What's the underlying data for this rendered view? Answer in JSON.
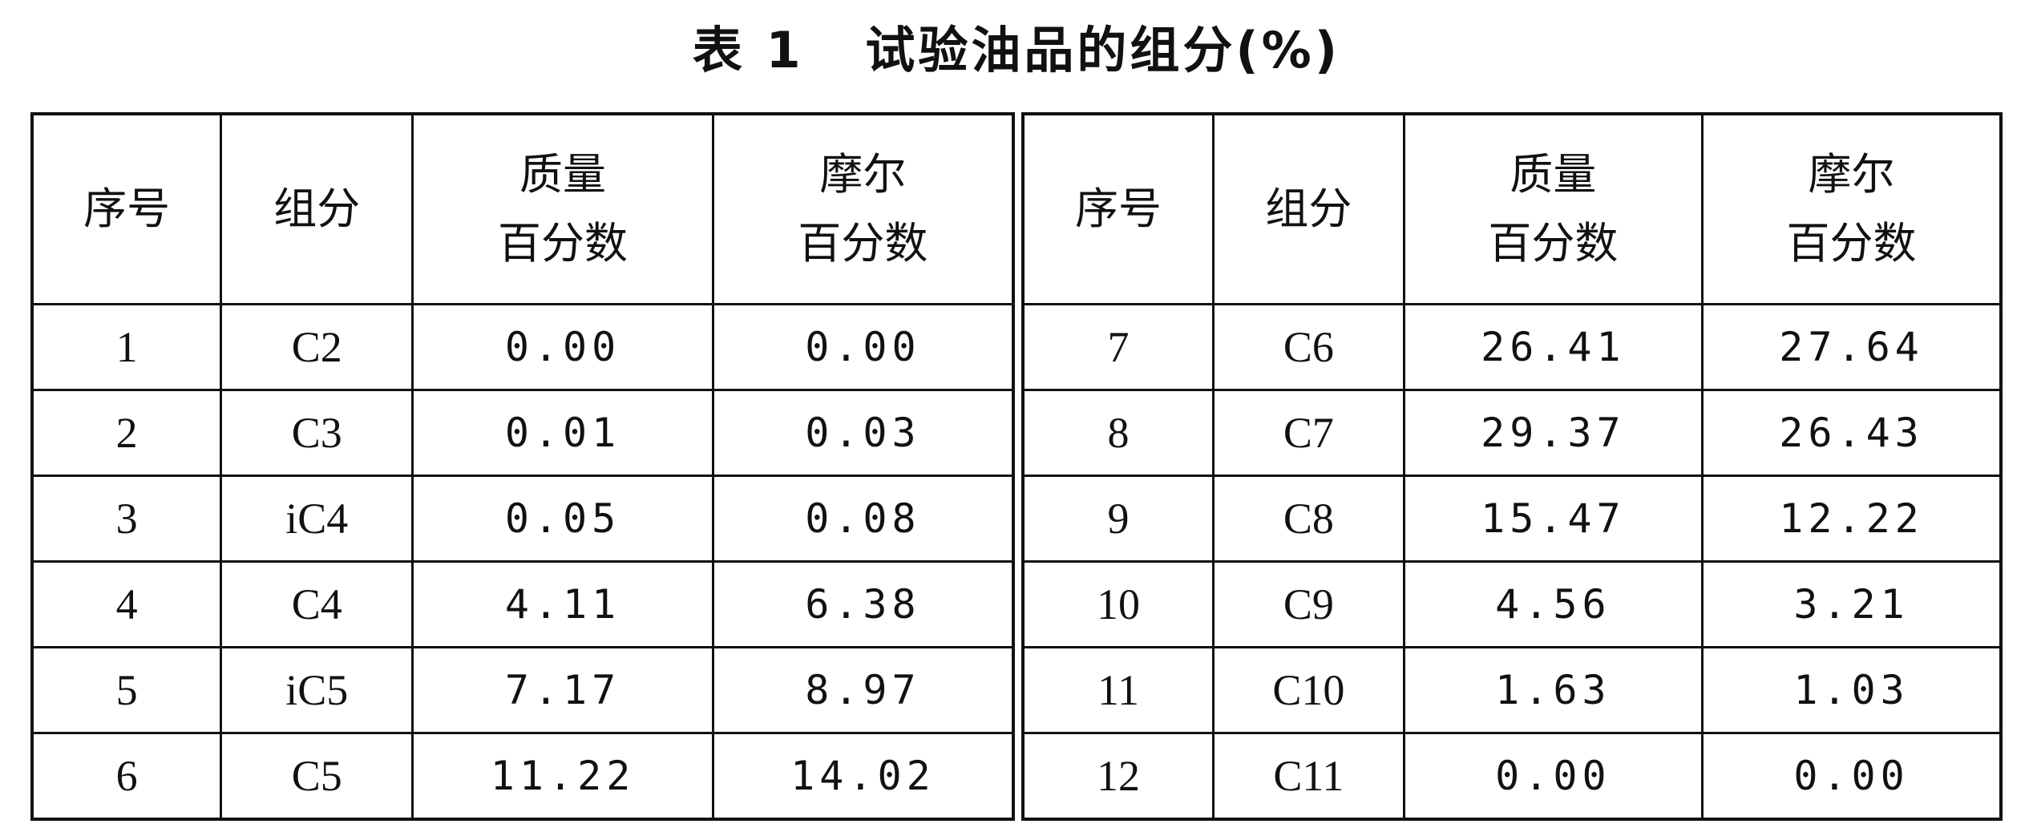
{
  "title": "表 1   试验油品的组分(%)",
  "headers": {
    "index": "序号",
    "component": "组分",
    "mass_line1": "质量",
    "mass_line2": "百分数",
    "molar_line1": "摩尔",
    "molar_line2": "百分数"
  },
  "left_rows": [
    {
      "index": "1",
      "component": "C2",
      "mass": "0.00",
      "molar": "0.00"
    },
    {
      "index": "2",
      "component": "C3",
      "mass": "0.01",
      "molar": "0.03"
    },
    {
      "index": "3",
      "component": "iC4",
      "mass": "0.05",
      "molar": "0.08"
    },
    {
      "index": "4",
      "component": "C4",
      "mass": "4.11",
      "molar": "6.38"
    },
    {
      "index": "5",
      "component": "iC5",
      "mass": "7.17",
      "molar": "8.97"
    },
    {
      "index": "6",
      "component": "C5",
      "mass": "11.22",
      "molar": "14.02"
    }
  ],
  "right_rows": [
    {
      "index": "7",
      "component": "C6",
      "mass": "26.41",
      "molar": "27.64"
    },
    {
      "index": "8",
      "component": "C7",
      "mass": "29.37",
      "molar": "26.43"
    },
    {
      "index": "9",
      "component": "C8",
      "mass": "15.47",
      "molar": "12.22"
    },
    {
      "index": "10",
      "component": "C9",
      "mass": "4.56",
      "molar": "3.21"
    },
    {
      "index": "11",
      "component": "C10",
      "mass": "1.63",
      "molar": "1.03"
    },
    {
      "index": "12",
      "component": "C11",
      "mass": "0.00",
      "molar": "0.00"
    }
  ]
}
